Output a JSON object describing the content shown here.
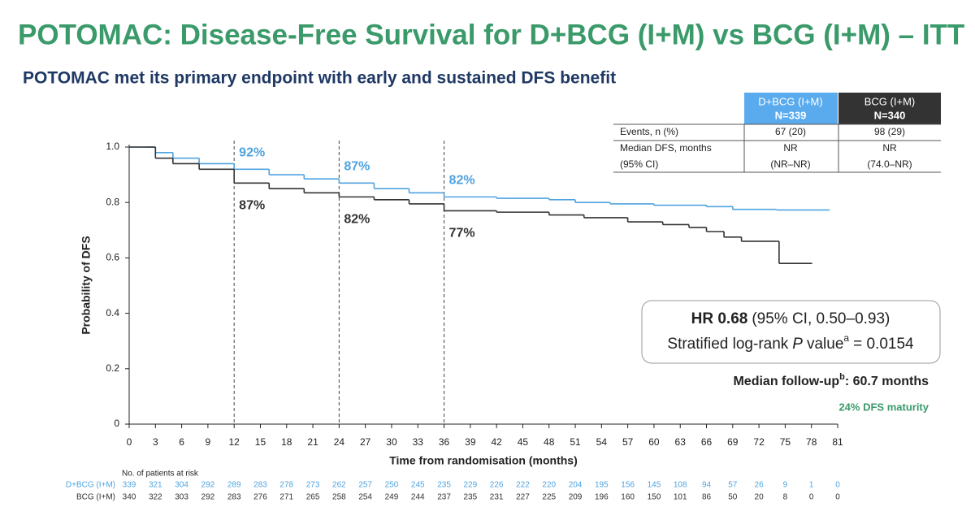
{
  "chart_data": {
    "type": "step",
    "title": "POTOMAC: Disease-Free Survival for D+BCG (I+M) vs BCG (I+M) – ITT",
    "subtitle": "POTOMAC met its primary endpoint with early and sustained DFS benefit",
    "xlabel": "Time from randomisation (months)",
    "ylabel": "Probability of DFS",
    "xlim": [
      0,
      81
    ],
    "xticks": [
      0,
      3,
      6,
      9,
      12,
      15,
      18,
      21,
      24,
      27,
      30,
      33,
      36,
      39,
      42,
      45,
      48,
      51,
      54,
      57,
      60,
      63,
      66,
      69,
      72,
      75,
      78,
      81
    ],
    "ylim": [
      0,
      1
    ],
    "yticks": [
      0,
      0.2,
      0.4,
      0.6,
      0.8,
      {
        "value": 1,
        "label": "1.0"
      }
    ],
    "landmark_x": [
      12,
      24,
      36
    ],
    "series": [
      {
        "name": "D+BCG (I+M)",
        "color": "#4fa3e0",
        "x": [
          0,
          2,
          3,
          5,
          8,
          12,
          16,
          20,
          24,
          28,
          32,
          36,
          42,
          48,
          51,
          55,
          60,
          66,
          69,
          74,
          80
        ],
        "values": [
          1,
          1,
          0.98,
          0.96,
          0.94,
          0.92,
          0.9,
          0.885,
          0.87,
          0.85,
          0.835,
          0.82,
          0.815,
          0.81,
          0.8,
          0.795,
          0.79,
          0.785,
          0.775,
          0.773,
          0.773
        ],
        "landmark_values": [
          0.92,
          0.87,
          0.82
        ],
        "landmark_labels": [
          "92%",
          "87%",
          "82%"
        ],
        "at_risk": [
          339,
          321,
          304,
          292,
          289,
          283,
          278,
          273,
          262,
          257,
          250,
          245,
          235,
          229,
          226,
          222,
          220,
          204,
          195,
          156,
          145,
          108,
          94,
          57,
          26,
          9,
          1,
          0
        ]
      },
      {
        "name": "BCG (I+M)",
        "color": "#333333",
        "x": [
          0,
          2,
          3,
          5,
          8,
          12,
          16,
          20,
          24,
          28,
          32,
          36,
          42,
          48,
          52,
          57,
          61,
          64,
          66,
          68,
          70,
          74,
          74.3,
          78
        ],
        "values": [
          1,
          1,
          0.96,
          0.94,
          0.92,
          0.87,
          0.85,
          0.835,
          0.82,
          0.81,
          0.795,
          0.77,
          0.765,
          0.755,
          0.745,
          0.73,
          0.72,
          0.71,
          0.695,
          0.675,
          0.66,
          0.66,
          0.58,
          0.58
        ],
        "landmark_values": [
          0.87,
          0.82,
          0.77
        ],
        "landmark_labels": [
          "87%",
          "82%",
          "77%"
        ],
        "at_risk": [
          340,
          322,
          303,
          292,
          283,
          276,
          271,
          265,
          258,
          254,
          249,
          244,
          237,
          235,
          231,
          227,
          225,
          209,
          196,
          160,
          150,
          101,
          86,
          50,
          20,
          8,
          0,
          0
        ]
      }
    ],
    "at_risk_title": "No. of patients at risk",
    "table": {
      "columns": [
        {
          "name": "D+BCG (I+M)",
          "n": "N=339"
        },
        {
          "name": "BCG (I+M)",
          "n": "N=340"
        }
      ],
      "rows": [
        {
          "label": "Events, n (%)",
          "cells": [
            "67 (20)",
            "98 (29)"
          ]
        },
        {
          "label": "Median DFS, months",
          "cells": [
            "NR",
            "NR"
          ]
        },
        {
          "label": "(95% CI)",
          "cells": [
            "(NR–NR)",
            "(74.0–NR)"
          ]
        }
      ]
    },
    "hr_box": {
      "hr": "HR 0.68",
      "ci": "(95% CI, 0.50–0.93)",
      "test": "Stratified log-rank",
      "p": "P",
      "value_word": "value",
      "sup": "a",
      "p_value": "= 0.0154"
    },
    "follow_up": {
      "label": "Median follow-up",
      "sup": "b",
      "value": ": 60.7 months"
    },
    "maturity": "24% DFS maturity"
  }
}
